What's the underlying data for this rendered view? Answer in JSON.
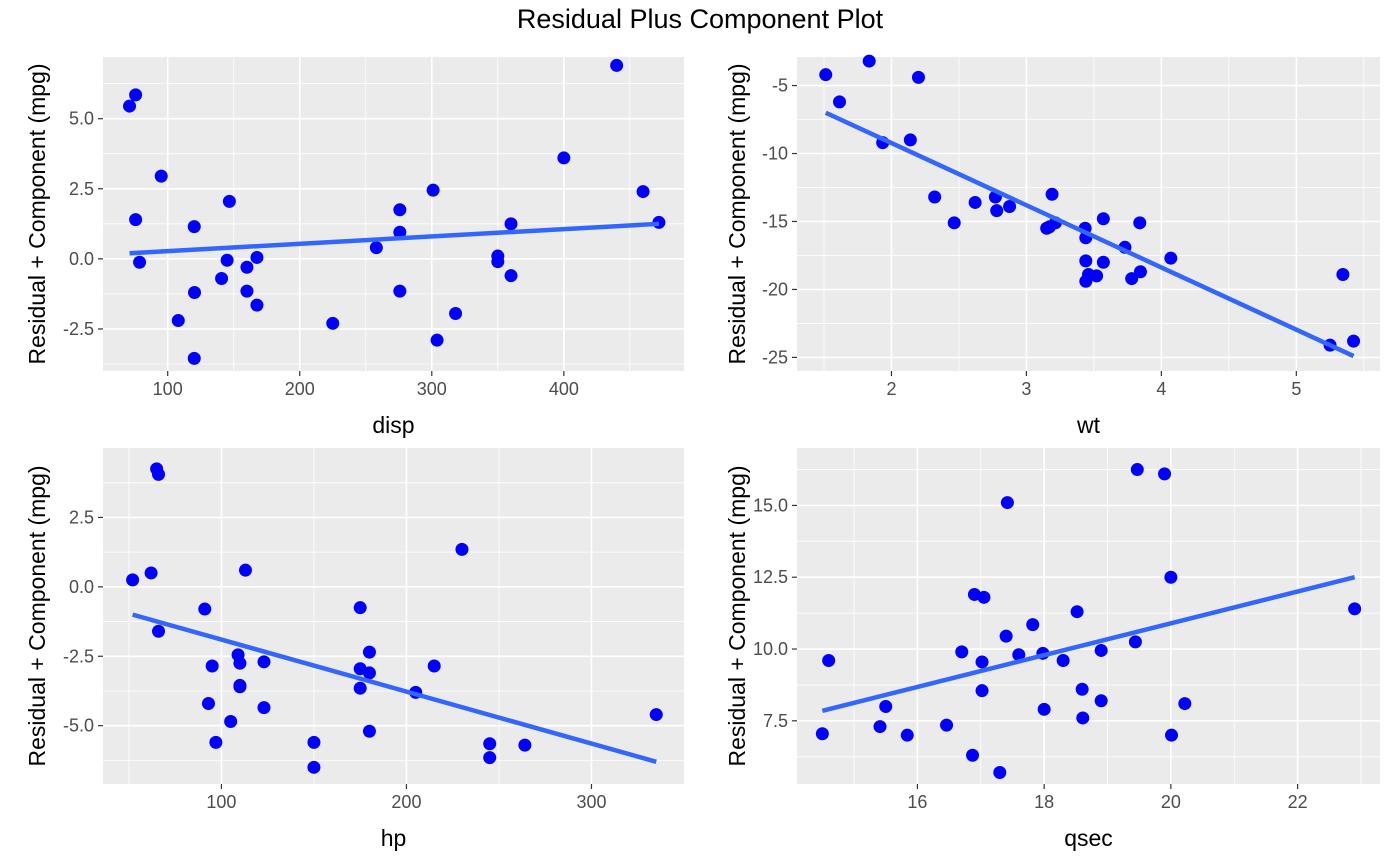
{
  "title": "Residual Plus Component Plot",
  "colors": {
    "panel_bg": "#ebebeb",
    "grid": "#ffffff",
    "point": "#0000ff",
    "line": "#3366ff",
    "tick_text": "#4d4d4d"
  },
  "chart_data": [
    {
      "type": "scatter",
      "xlabel": "disp",
      "ylabel": "Residual + Component (mpg)",
      "xlim": [
        51,
        491
      ],
      "ylim": [
        -4.0,
        7.2
      ],
      "xticks": [
        100,
        200,
        300,
        400
      ],
      "xtick_labels": [
        "100",
        "200",
        "300",
        "400"
      ],
      "yticks": [
        -2.5,
        0.0,
        2.5,
        5.0
      ],
      "ytick_labels": [
        "-2.5",
        "0.0",
        "2.5",
        "5.0"
      ],
      "grid": true,
      "points": [
        [
          71.1,
          5.45
        ],
        [
          75.7,
          5.85
        ],
        [
          78.7,
          -0.12
        ],
        [
          75.7,
          1.4
        ],
        [
          95.1,
          2.95
        ],
        [
          108,
          -2.2
        ],
        [
          120.1,
          1.15
        ],
        [
          120.3,
          -1.2
        ],
        [
          120.1,
          -3.55
        ],
        [
          140.8,
          -0.7
        ],
        [
          146.7,
          2.05
        ],
        [
          145,
          -0.05
        ],
        [
          160,
          -0.3
        ],
        [
          160,
          -1.15
        ],
        [
          167.6,
          -1.65
        ],
        [
          167.6,
          0.05
        ],
        [
          225,
          -2.3
        ],
        [
          258,
          0.4
        ],
        [
          275.8,
          1.75
        ],
        [
          275.8,
          0.95
        ],
        [
          275.8,
          -1.15
        ],
        [
          301,
          2.45
        ],
        [
          304,
          -2.9
        ],
        [
          318,
          -1.95
        ],
        [
          350,
          0.1
        ],
        [
          350,
          -0.1
        ],
        [
          360,
          1.25
        ],
        [
          360,
          -0.6
        ],
        [
          400,
          3.6
        ],
        [
          440,
          6.9
        ],
        [
          460,
          2.4
        ],
        [
          472,
          1.3
        ]
      ],
      "fit_line": [
        [
          71.1,
          0.2
        ],
        [
          472,
          1.25
        ]
      ]
    },
    {
      "type": "scatter",
      "xlabel": "wt",
      "ylabel": "Residual + Component (mpg)",
      "xlim": [
        1.3,
        5.62
      ],
      "ylim": [
        -26.0,
        -2.9
      ],
      "xticks": [
        2,
        3,
        4,
        5
      ],
      "xtick_labels": [
        "2",
        "3",
        "4",
        "5"
      ],
      "yticks": [
        -25,
        -20,
        -15,
        -10,
        -5
      ],
      "ytick_labels": [
        "-25",
        "-20",
        "-15",
        "-10",
        "-5"
      ],
      "grid": true,
      "points": [
        [
          1.513,
          -4.2
        ],
        [
          1.615,
          -6.2
        ],
        [
          1.835,
          -3.2
        ],
        [
          1.935,
          -9.2
        ],
        [
          2.14,
          -9.0
        ],
        [
          2.2,
          -4.4
        ],
        [
          2.32,
          -13.2
        ],
        [
          2.465,
          -15.1
        ],
        [
          2.62,
          -13.6
        ],
        [
          2.77,
          -13.2
        ],
        [
          2.78,
          -14.2
        ],
        [
          2.875,
          -13.9
        ],
        [
          3.15,
          -15.5
        ],
        [
          3.17,
          -15.4
        ],
        [
          3.19,
          -13.0
        ],
        [
          3.215,
          -15.1
        ],
        [
          3.435,
          -15.5
        ],
        [
          3.44,
          -16.2
        ],
        [
          3.44,
          -17.9
        ],
        [
          3.44,
          -19.4
        ],
        [
          3.46,
          -18.9
        ],
        [
          3.52,
          -19.0
        ],
        [
          3.57,
          -14.8
        ],
        [
          3.57,
          -18.0
        ],
        [
          3.73,
          -16.9
        ],
        [
          3.78,
          -19.2
        ],
        [
          3.84,
          -15.1
        ],
        [
          3.845,
          -18.7
        ],
        [
          4.07,
          -17.7
        ],
        [
          5.25,
          -24.1
        ],
        [
          5.345,
          -18.9
        ],
        [
          5.424,
          -23.8
        ]
      ],
      "fit_line": [
        [
          1.513,
          -7.0
        ],
        [
          5.424,
          -24.9
        ]
      ]
    },
    {
      "type": "scatter",
      "xlabel": "hp",
      "ylabel": "Residual + Component (mpg)",
      "xlim": [
        36,
        350
      ],
      "ylim": [
        -7.1,
        5.0
      ],
      "xticks": [
        100,
        200,
        300
      ],
      "xtick_labels": [
        "100",
        "200",
        "300"
      ],
      "yticks": [
        -5.0,
        -2.5,
        0.0,
        2.5
      ],
      "ytick_labels": [
        "-5.0",
        "-2.5",
        "0.0",
        "2.5"
      ],
      "grid": true,
      "points": [
        [
          52,
          0.25
        ],
        [
          62,
          0.5
        ],
        [
          65,
          4.25
        ],
        [
          66,
          4.05
        ],
        [
          66,
          -1.6
        ],
        [
          91,
          -0.8
        ],
        [
          93,
          -4.2
        ],
        [
          95,
          -2.85
        ],
        [
          97,
          -5.6
        ],
        [
          105,
          -4.85
        ],
        [
          109,
          -2.45
        ],
        [
          110,
          -2.75
        ],
        [
          110,
          -3.55
        ],
        [
          110,
          -3.6
        ],
        [
          113,
          0.6
        ],
        [
          123,
          -2.7
        ],
        [
          123,
          -4.35
        ],
        [
          150,
          -5.6
        ],
        [
          150,
          -6.5
        ],
        [
          175,
          -0.75
        ],
        [
          175,
          -2.95
        ],
        [
          175,
          -3.65
        ],
        [
          180,
          -2.35
        ],
        [
          180,
          -3.1
        ],
        [
          180,
          -5.2
        ],
        [
          205,
          -3.8
        ],
        [
          215,
          -2.85
        ],
        [
          230,
          1.35
        ],
        [
          245,
          -5.65
        ],
        [
          245,
          -6.15
        ],
        [
          264,
          -5.7
        ],
        [
          335,
          -4.6
        ]
      ],
      "fit_line": [
        [
          52,
          -1.0
        ],
        [
          335,
          -6.3
        ]
      ]
    },
    {
      "type": "scatter",
      "xlabel": "qsec",
      "ylabel": "Residual + Component (mpg)",
      "xlim": [
        14.1,
        23.3
      ],
      "ylim": [
        5.3,
        17.0
      ],
      "xticks": [
        16,
        18,
        20,
        22
      ],
      "xtick_labels": [
        "16",
        "18",
        "20",
        "22"
      ],
      "yticks": [
        7.5,
        10.0,
        12.5,
        15.0
      ],
      "ytick_labels": [
        "7.5",
        "10.0",
        "12.5",
        "15.0"
      ],
      "grid": true,
      "points": [
        [
          14.5,
          7.05
        ],
        [
          14.6,
          9.6
        ],
        [
          15.41,
          7.3
        ],
        [
          15.5,
          8.0
        ],
        [
          15.84,
          7.0
        ],
        [
          16.46,
          7.35
        ],
        [
          16.7,
          9.9
        ],
        [
          16.87,
          6.3
        ],
        [
          16.9,
          11.9
        ],
        [
          17.02,
          9.55
        ],
        [
          17.02,
          8.55
        ],
        [
          17.05,
          11.8
        ],
        [
          17.3,
          5.7
        ],
        [
          17.4,
          10.45
        ],
        [
          17.42,
          15.1
        ],
        [
          17.6,
          9.8
        ],
        [
          17.82,
          10.85
        ],
        [
          17.98,
          9.85
        ],
        [
          18.0,
          7.9
        ],
        [
          18.3,
          9.6
        ],
        [
          18.52,
          11.3
        ],
        [
          18.6,
          8.6
        ],
        [
          18.61,
          7.6
        ],
        [
          18.9,
          9.95
        ],
        [
          18.9,
          8.2
        ],
        [
          19.44,
          10.25
        ],
        [
          19.47,
          16.25
        ],
        [
          19.9,
          16.1
        ],
        [
          20.0,
          12.5
        ],
        [
          20.01,
          7.0
        ],
        [
          20.22,
          8.1
        ],
        [
          22.9,
          11.4
        ]
      ],
      "fit_line": [
        [
          14.5,
          7.85
        ],
        [
          22.9,
          12.5
        ]
      ]
    }
  ]
}
